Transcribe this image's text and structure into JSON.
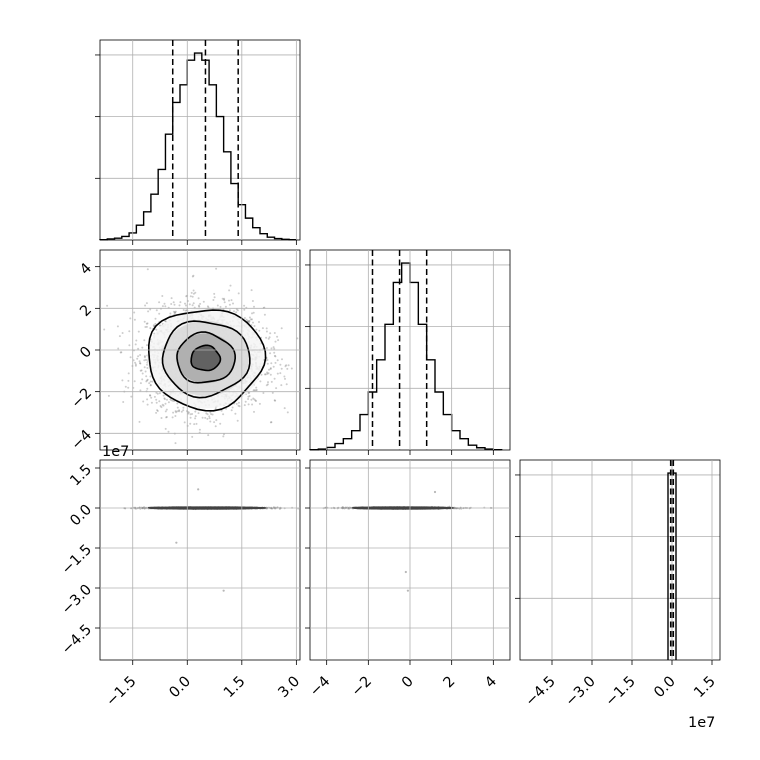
{
  "chart_data": {
    "type": "corner",
    "title": "",
    "n_params": 3,
    "colors": {
      "line": "#000000",
      "grid": "#b0b0b0",
      "points": "#707070"
    },
    "grid": true,
    "offset_label": "1e7",
    "axes": {
      "p0": {
        "range": [
          -2.4,
          3.1
        ],
        "ticks": [
          -1.5,
          0.0,
          1.5,
          3.0
        ],
        "tick_labels": [
          "−1.5",
          "0.0",
          "1.5",
          "3.0"
        ]
      },
      "p1": {
        "range": [
          -4.8,
          4.8
        ],
        "ticks": [
          -4,
          -2,
          0,
          2,
          4
        ],
        "tick_labels": [
          "−4",
          "−2",
          "0",
          "2",
          "4"
        ]
      },
      "p2": {
        "range": [
          -5.7,
          1.8
        ],
        "ticks": [
          -4.5,
          -3.0,
          -1.5,
          0.0,
          1.5
        ],
        "tick_labels": [
          "−4.5",
          "−3.0",
          "−1.5",
          "0.0",
          "1.5"
        ],
        "scale": "1e7"
      }
    },
    "marginals": [
      {
        "param": "p0",
        "bin_edges": [
          -2.4,
          -2.2,
          -2.0,
          -1.8,
          -1.6,
          -1.4,
          -1.2,
          -1.0,
          -0.8,
          -0.6,
          -0.4,
          -0.2,
          0.0,
          0.2,
          0.4,
          0.6,
          0.8,
          1.0,
          1.2,
          1.4,
          1.6,
          1.8,
          2.0,
          2.2,
          2.4,
          2.6,
          2.8,
          3.0
        ],
        "counts": [
          1,
          3,
          5,
          10,
          20,
          42,
          80,
          130,
          200,
          300,
          390,
          440,
          510,
          530,
          510,
          440,
          350,
          250,
          160,
          100,
          62,
          35,
          18,
          8,
          4,
          2,
          1
        ],
        "quantiles": [
          -0.4,
          0.5,
          1.4
        ]
      },
      {
        "param": "p1",
        "bin_edges": [
          -4.8,
          -4.4,
          -4.0,
          -3.6,
          -3.2,
          -2.8,
          -2.4,
          -2.0,
          -1.6,
          -1.2,
          -0.8,
          -0.4,
          0.0,
          0.4,
          0.8,
          1.2,
          1.6,
          2.0,
          2.4,
          2.8,
          3.2,
          3.6,
          4.0,
          4.4
        ],
        "counts": [
          1,
          3,
          8,
          20,
          35,
          60,
          110,
          180,
          280,
          390,
          520,
          580,
          520,
          390,
          280,
          180,
          110,
          60,
          35,
          15,
          7,
          3,
          1
        ],
        "quantiles": [
          -1.8,
          -0.5,
          0.8
        ]
      },
      {
        "param": "p2",
        "bin_edges": [
          -0.15,
          0.15
        ],
        "counts": [
          1
        ],
        "quantiles": [
          -0.05,
          0.0,
          0.05
        ]
      }
    ],
    "joint": [
      {
        "x": "p0",
        "y": "p1",
        "center": [
          0.5,
          -0.4
        ],
        "sigma": [
          0.8,
          1.2
        ],
        "contour_levels_sigma": [
          0.5,
          1.0,
          1.5,
          2.0
        ],
        "samples": 3000
      },
      {
        "x": "p0",
        "y": "p2",
        "center": [
          0.5,
          0.0
        ],
        "sigma": [
          0.8,
          0.012
        ],
        "contour_levels_sigma": [
          0.5,
          1.0,
          1.5,
          2.0
        ],
        "samples": 1500,
        "outliers": [
          [
            -0.3,
            -1.3
          ],
          [
            1.0,
            -3.1
          ],
          [
            0.3,
            0.7
          ]
        ]
      },
      {
        "x": "p1",
        "y": "p2",
        "center": [
          -0.4,
          0.0
        ],
        "sigma": [
          1.2,
          0.012
        ],
        "contour_levels_sigma": [
          0.5,
          1.0,
          1.5,
          2.0
        ],
        "samples": 1500,
        "outliers": [
          [
            -0.2,
            -2.4
          ],
          [
            -0.1,
            -3.1
          ],
          [
            1.2,
            0.6
          ]
        ]
      }
    ]
  }
}
